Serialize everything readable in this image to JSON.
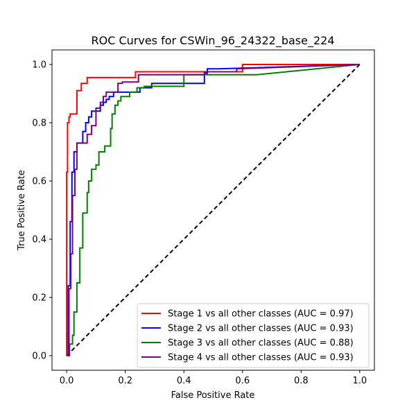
{
  "chart_data": {
    "type": "line",
    "title": "ROC Curves for CSWin_96_24322_base_224",
    "xlabel": "False Positive Rate",
    "ylabel": "True Positive Rate",
    "xlim": [
      -0.05,
      1.05
    ],
    "ylim": [
      -0.05,
      1.05
    ],
    "xticks": [
      "0.0",
      "0.2",
      "0.4",
      "0.6",
      "0.8",
      "1.0"
    ],
    "yticks": [
      "0.0",
      "0.2",
      "0.4",
      "0.6",
      "0.8",
      "1.0"
    ],
    "grid": false,
    "legend_position": "lower-right",
    "diagonal": {
      "x": [
        0,
        1
      ],
      "y": [
        0,
        1
      ],
      "color": "#000000",
      "style": "dashed"
    },
    "series": [
      {
        "name": "Stage 1 vs all other classes (AUC = 0.97)",
        "color": "#ff0000",
        "x": [
          0,
          0,
          0.003,
          0.003,
          0.008,
          0.008,
          0.012,
          0.012,
          0.035,
          0.035,
          0.05,
          0.05,
          0.07,
          0.07,
          0.235,
          0.235,
          0.6,
          0.6,
          1.0
        ],
        "y": [
          0,
          0.63,
          0.63,
          0.8,
          0.8,
          0.82,
          0.82,
          0.83,
          0.83,
          0.91,
          0.91,
          0.935,
          0.935,
          0.955,
          0.955,
          0.975,
          0.975,
          1.0,
          1.0
        ]
      },
      {
        "name": "Stage 2 vs all other classes (AUC = 0.93)",
        "color": "#0000ff",
        "x": [
          0,
          0.005,
          0.005,
          0.012,
          0.012,
          0.018,
          0.018,
          0.025,
          0.025,
          0.035,
          0.035,
          0.055,
          0.055,
          0.065,
          0.065,
          0.075,
          0.075,
          0.085,
          0.085,
          0.115,
          0.115,
          0.125,
          0.125,
          0.135,
          0.135,
          0.145,
          0.145,
          0.16,
          0.16,
          0.25,
          0.25,
          0.29,
          0.29,
          0.47,
          0.47,
          0.48,
          0.48,
          0.52,
          0.52,
          1.0
        ],
        "y": [
          0,
          0,
          0.24,
          0.24,
          0.46,
          0.46,
          0.63,
          0.63,
          0.7,
          0.7,
          0.73,
          0.73,
          0.77,
          0.77,
          0.8,
          0.8,
          0.82,
          0.82,
          0.84,
          0.84,
          0.86,
          0.86,
          0.87,
          0.87,
          0.88,
          0.88,
          0.89,
          0.89,
          0.905,
          0.905,
          0.92,
          0.92,
          0.935,
          0.935,
          0.97,
          0.97,
          0.985,
          0.985,
          0.985,
          1.0
        ]
      },
      {
        "name": "Stage 3 vs all other classes (AUC = 0.88)",
        "color": "#008000",
        "x": [
          0,
          0.01,
          0.01,
          0.02,
          0.02,
          0.025,
          0.025,
          0.035,
          0.035,
          0.045,
          0.045,
          0.055,
          0.055,
          0.07,
          0.07,
          0.075,
          0.075,
          0.085,
          0.085,
          0.1,
          0.1,
          0.11,
          0.11,
          0.13,
          0.13,
          0.15,
          0.15,
          0.155,
          0.155,
          0.165,
          0.165,
          0.175,
          0.175,
          0.185,
          0.185,
          0.215,
          0.215,
          0.24,
          0.24,
          0.265,
          0.265,
          0.4,
          0.4,
          0.58,
          0.65,
          1.0
        ],
        "y": [
          0,
          0,
          0.04,
          0.04,
          0.07,
          0.07,
          0.15,
          0.15,
          0.25,
          0.25,
          0.37,
          0.37,
          0.49,
          0.49,
          0.56,
          0.56,
          0.6,
          0.6,
          0.64,
          0.64,
          0.655,
          0.655,
          0.7,
          0.7,
          0.72,
          0.72,
          0.78,
          0.78,
          0.83,
          0.83,
          0.86,
          0.86,
          0.875,
          0.875,
          0.89,
          0.89,
          0.905,
          0.905,
          0.92,
          0.92,
          0.925,
          0.925,
          0.965,
          0.965,
          0.965,
          1.0
        ]
      },
      {
        "name": "Stage 4 vs all other classes (AUC = 0.93)",
        "color": "#800080",
        "x": [
          0,
          0.008,
          0.008,
          0.014,
          0.014,
          0.02,
          0.02,
          0.028,
          0.028,
          0.035,
          0.035,
          0.05,
          0.05,
          0.07,
          0.07,
          0.085,
          0.085,
          0.1,
          0.1,
          0.115,
          0.115,
          0.125,
          0.125,
          0.135,
          0.135,
          0.155,
          0.155,
          0.175,
          0.175,
          0.19,
          0.19,
          0.245,
          0.245,
          0.47,
          0.47,
          0.58,
          0.58,
          1.0
        ],
        "y": [
          0,
          0,
          0.23,
          0.23,
          0.35,
          0.35,
          0.55,
          0.55,
          0.64,
          0.64,
          0.73,
          0.73,
          0.73,
          0.73,
          0.76,
          0.76,
          0.79,
          0.79,
          0.85,
          0.85,
          0.87,
          0.87,
          0.89,
          0.89,
          0.905,
          0.905,
          0.905,
          0.905,
          0.935,
          0.935,
          0.94,
          0.94,
          0.965,
          0.965,
          0.975,
          0.975,
          0.985,
          1.0
        ]
      }
    ]
  }
}
